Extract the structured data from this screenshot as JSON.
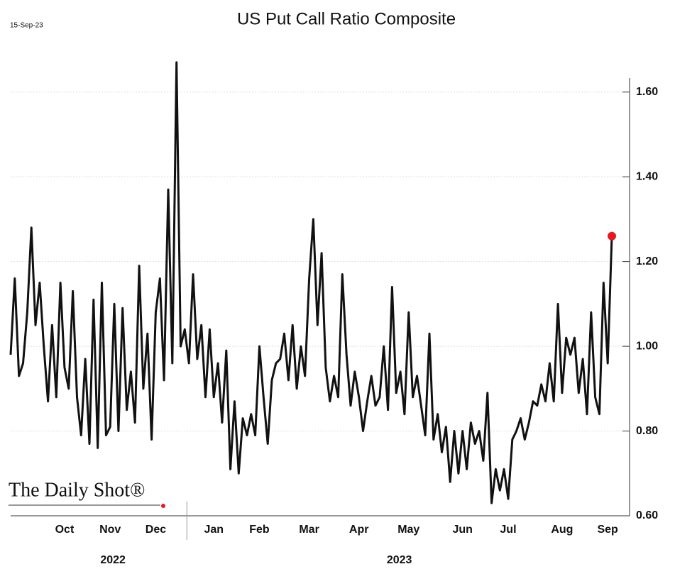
{
  "chart_data": {
    "type": "line",
    "title": "US Put Call Ratio Composite",
    "date_label": "15-Sep-23",
    "source": "The Daily Shot®",
    "years": [
      "2022",
      "2023"
    ],
    "categories": [
      null,
      null,
      null,
      null,
      null,
      null,
      null,
      null,
      null,
      null,
      null,
      null,
      null,
      "Oct",
      null,
      null,
      null,
      null,
      null,
      null,
      null,
      null,
      null,
      null,
      "Nov",
      null,
      null,
      null,
      null,
      null,
      null,
      null,
      null,
      null,
      null,
      "Dec",
      null,
      null,
      null,
      null,
      null,
      null,
      null,
      null,
      null,
      null,
      null,
      null,
      null,
      "Jan",
      null,
      null,
      null,
      null,
      null,
      null,
      null,
      null,
      null,
      null,
      "Feb",
      null,
      null,
      null,
      null,
      null,
      null,
      null,
      null,
      null,
      null,
      null,
      "Mar",
      null,
      null,
      null,
      null,
      null,
      null,
      null,
      null,
      null,
      null,
      null,
      "Apr",
      null,
      null,
      null,
      null,
      null,
      null,
      null,
      null,
      null,
      null,
      null,
      "May",
      null,
      null,
      null,
      null,
      null,
      null,
      null,
      null,
      null,
      null,
      null,
      null,
      "Jun",
      null,
      null,
      null,
      null,
      null,
      null,
      null,
      null,
      null,
      null,
      "Jul",
      null,
      null,
      null,
      null,
      null,
      null,
      null,
      null,
      null,
      null,
      null,
      null,
      "Aug",
      null,
      null,
      null,
      null,
      null,
      null,
      null,
      null,
      null,
      null,
      "Sep",
      null
    ],
    "series": [
      {
        "name": "US Put Call Ratio Composite",
        "color": "#111111",
        "end_marker_color": "#e8191e",
        "values": [
          0.98,
          1.16,
          0.93,
          0.96,
          1.08,
          1.28,
          1.05,
          1.15,
          1.0,
          0.87,
          1.05,
          0.88,
          1.15,
          0.95,
          0.9,
          1.13,
          0.88,
          0.79,
          0.97,
          0.77,
          1.11,
          0.76,
          1.15,
          0.79,
          0.81,
          1.1,
          0.8,
          1.09,
          0.85,
          0.94,
          0.82,
          1.19,
          0.9,
          1.03,
          0.78,
          1.08,
          1.16,
          0.92,
          1.37,
          0.96,
          1.67,
          1.0,
          1.04,
          0.96,
          1.17,
          0.97,
          1.05,
          0.88,
          1.04,
          0.88,
          0.96,
          0.82,
          0.99,
          0.71,
          0.87,
          0.7,
          0.83,
          0.79,
          0.84,
          0.79,
          1.0,
          0.88,
          0.77,
          0.92,
          0.96,
          0.97,
          1.03,
          0.92,
          1.05,
          0.9,
          1.0,
          0.93,
          1.16,
          1.3,
          1.05,
          1.22,
          0.95,
          0.87,
          0.93,
          0.88,
          1.17,
          0.98,
          0.86,
          0.94,
          0.88,
          0.8,
          0.87,
          0.93,
          0.86,
          0.88,
          1.0,
          0.85,
          1.14,
          0.89,
          0.94,
          0.84,
          1.08,
          0.88,
          0.93,
          0.86,
          0.79,
          1.03,
          0.78,
          0.84,
          0.75,
          0.81,
          0.68,
          0.8,
          0.7,
          0.8,
          0.71,
          0.82,
          0.77,
          0.8,
          0.73,
          0.89,
          0.63,
          0.71,
          0.66,
          0.71,
          0.64,
          0.78,
          0.8,
          0.83,
          0.78,
          0.82,
          0.87,
          0.86,
          0.91,
          0.87,
          0.96,
          0.87,
          1.1,
          0.89,
          1.02,
          0.98,
          1.02,
          0.89,
          0.97,
          0.84,
          1.08,
          0.88,
          0.84,
          1.15,
          0.96,
          1.26
        ]
      }
    ],
    "ylim": [
      0.6,
      1.7
    ],
    "yticks": [
      {
        "value": 0.6,
        "label": "0.60"
      },
      {
        "value": 0.8,
        "label": "0.80"
      },
      {
        "value": 1.0,
        "label": "1.00"
      },
      {
        "value": 1.2,
        "label": "1.20"
      },
      {
        "value": 1.4,
        "label": "1.40"
      },
      {
        "value": 1.6,
        "label": "1.60"
      }
    ],
    "grid": true
  }
}
